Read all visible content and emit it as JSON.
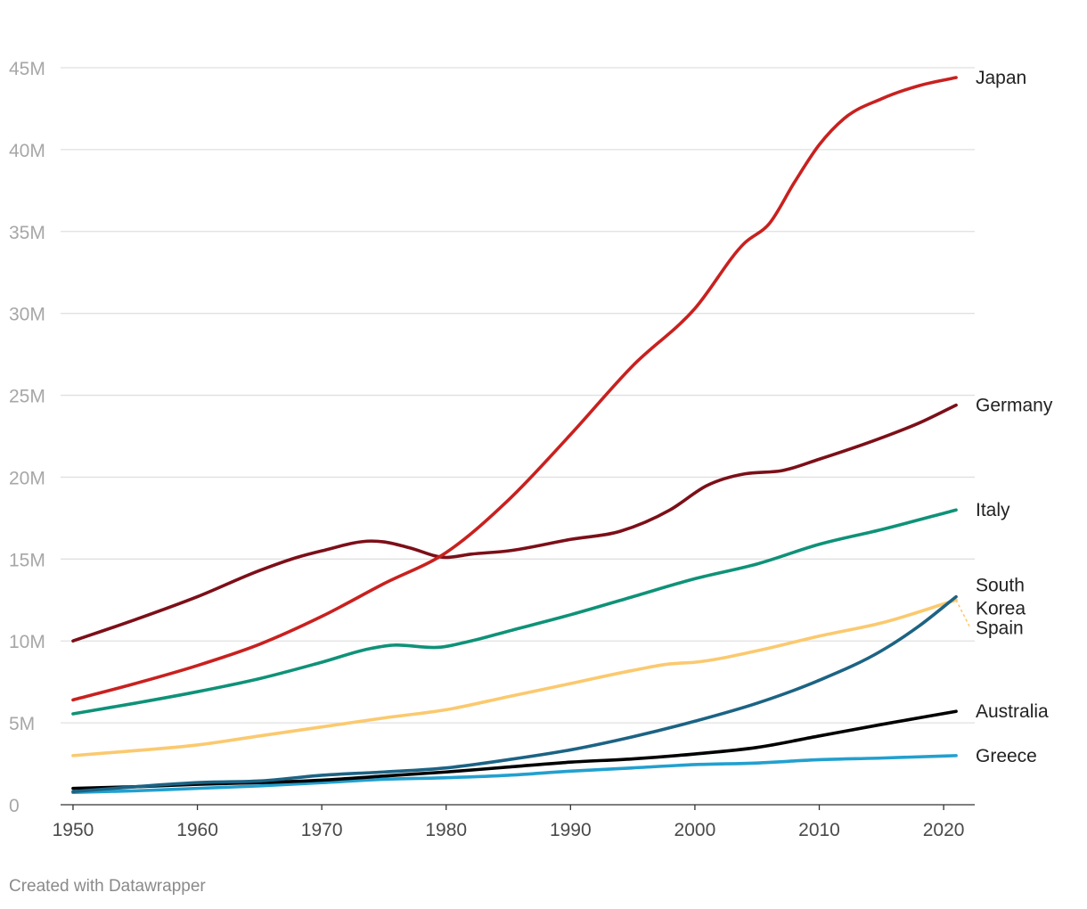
{
  "credit": "Created with Datawrapper",
  "chart_data": {
    "type": "line",
    "title": "",
    "xlabel": "",
    "ylabel": "",
    "xlim": [
      1949,
      2022.5
    ],
    "ylim": [
      0,
      45000000
    ],
    "x_ticks": [
      1950,
      1960,
      1970,
      1980,
      1990,
      2000,
      2010,
      2020
    ],
    "y_ticks": [
      {
        "value": 0,
        "label": "0"
      },
      {
        "value": 5000000,
        "label": "5M"
      },
      {
        "value": 10000000,
        "label": "10M"
      },
      {
        "value": 15000000,
        "label": "15M"
      },
      {
        "value": 20000000,
        "label": "20M"
      },
      {
        "value": 25000000,
        "label": "25M"
      },
      {
        "value": 30000000,
        "label": "30M"
      },
      {
        "value": 35000000,
        "label": "35M"
      },
      {
        "value": 40000000,
        "label": "40M"
      },
      {
        "value": 45000000,
        "label": "45M"
      }
    ],
    "grid": true,
    "legend": "direct labels at line ends (right)",
    "series": [
      {
        "name": "Greece",
        "color": "#22a0cf",
        "labels": [
          "Greece"
        ],
        "points": [
          [
            1950,
            750000
          ],
          [
            1955,
            850000
          ],
          [
            1960,
            1000000
          ],
          [
            1965,
            1150000
          ],
          [
            1970,
            1350000
          ],
          [
            1975,
            1550000
          ],
          [
            1980,
            1650000
          ],
          [
            1985,
            1800000
          ],
          [
            1990,
            2050000
          ],
          [
            1995,
            2250000
          ],
          [
            2000,
            2450000
          ],
          [
            2005,
            2550000
          ],
          [
            2010,
            2750000
          ],
          [
            2015,
            2850000
          ],
          [
            2021,
            3000000
          ]
        ]
      },
      {
        "name": "Australia",
        "color": "#000000",
        "labels": [
          "Australia"
        ],
        "points": [
          [
            1950,
            1000000
          ],
          [
            1955,
            1100000
          ],
          [
            1960,
            1250000
          ],
          [
            1965,
            1350000
          ],
          [
            1970,
            1500000
          ],
          [
            1975,
            1750000
          ],
          [
            1980,
            2000000
          ],
          [
            1985,
            2300000
          ],
          [
            1990,
            2600000
          ],
          [
            1995,
            2800000
          ],
          [
            2000,
            3100000
          ],
          [
            2005,
            3500000
          ],
          [
            2010,
            4200000
          ],
          [
            2015,
            4900000
          ],
          [
            2021,
            5700000
          ]
        ]
      },
      {
        "name": "Spain",
        "color": "#fbc96e",
        "labels": [
          "Spain"
        ],
        "points": [
          [
            1950,
            3000000
          ],
          [
            1955,
            3300000
          ],
          [
            1960,
            3650000
          ],
          [
            1965,
            4200000
          ],
          [
            1970,
            4750000
          ],
          [
            1975,
            5300000
          ],
          [
            1980,
            5800000
          ],
          [
            1985,
            6600000
          ],
          [
            1990,
            7400000
          ],
          [
            1995,
            8200000
          ],
          [
            1998,
            8600000
          ],
          [
            2000,
            8700000
          ],
          [
            2005,
            9400000
          ],
          [
            2010,
            10300000
          ],
          [
            2015,
            11100000
          ],
          [
            2021,
            12500000
          ]
        ]
      },
      {
        "name": "South Korea",
        "color": "#1c6384",
        "labels": [
          "South",
          "Korea"
        ],
        "points": [
          [
            1950,
            800000
          ],
          [
            1955,
            1100000
          ],
          [
            1960,
            1350000
          ],
          [
            1965,
            1450000
          ],
          [
            1970,
            1800000
          ],
          [
            1975,
            2000000
          ],
          [
            1980,
            2250000
          ],
          [
            1985,
            2750000
          ],
          [
            1990,
            3350000
          ],
          [
            1995,
            4150000
          ],
          [
            2000,
            5100000
          ],
          [
            2005,
            6200000
          ],
          [
            2010,
            7600000
          ],
          [
            2015,
            9400000
          ],
          [
            2018,
            10900000
          ],
          [
            2021,
            12700000
          ]
        ]
      },
      {
        "name": "Italy",
        "color": "#0e9278",
        "labels": [
          "Italy"
        ],
        "points": [
          [
            1950,
            5550000
          ],
          [
            1955,
            6200000
          ],
          [
            1960,
            6900000
          ],
          [
            1965,
            7700000
          ],
          [
            1970,
            8700000
          ],
          [
            1974,
            9550000
          ],
          [
            1976,
            9750000
          ],
          [
            1979,
            9600000
          ],
          [
            1982,
            10000000
          ],
          [
            1985,
            10600000
          ],
          [
            1990,
            11600000
          ],
          [
            1995,
            12700000
          ],
          [
            2000,
            13800000
          ],
          [
            2005,
            14700000
          ],
          [
            2010,
            15900000
          ],
          [
            2015,
            16800000
          ],
          [
            2021,
            18000000
          ]
        ]
      },
      {
        "name": "Germany",
        "color": "#7c0f18",
        "labels": [
          "Germany"
        ],
        "points": [
          [
            1950,
            10000000
          ],
          [
            1955,
            11300000
          ],
          [
            1960,
            12700000
          ],
          [
            1965,
            14300000
          ],
          [
            1968,
            15100000
          ],
          [
            1970,
            15500000
          ],
          [
            1974,
            16100000
          ],
          [
            1975,
            16050000
          ],
          [
            1977,
            15700000
          ],
          [
            1980,
            15100000
          ],
          [
            1982,
            15300000
          ],
          [
            1985,
            15500000
          ],
          [
            1990,
            16200000
          ],
          [
            1994,
            16700000
          ],
          [
            1998,
            18000000
          ],
          [
            2001,
            19500000
          ],
          [
            2004,
            20200000
          ],
          [
            2007,
            20400000
          ],
          [
            2010,
            21100000
          ],
          [
            2015,
            22400000
          ],
          [
            2018,
            23300000
          ],
          [
            2021,
            24400000
          ]
        ]
      },
      {
        "name": "Japan",
        "color": "#c8211f",
        "labels": [
          "Japan"
        ],
        "points": [
          [
            1950,
            6400000
          ],
          [
            1955,
            7400000
          ],
          [
            1960,
            8500000
          ],
          [
            1965,
            9800000
          ],
          [
            1970,
            11500000
          ],
          [
            1975,
            13500000
          ],
          [
            1980,
            15400000
          ],
          [
            1985,
            18600000
          ],
          [
            1990,
            22600000
          ],
          [
            1995,
            26800000
          ],
          [
            2000,
            30300000
          ],
          [
            2004,
            34300000
          ],
          [
            2006,
            35500000
          ],
          [
            2008,
            38000000
          ],
          [
            2010,
            40300000
          ],
          [
            2012,
            41900000
          ],
          [
            2015,
            43100000
          ],
          [
            2018,
            43900000
          ],
          [
            2021,
            44400000
          ]
        ]
      }
    ]
  }
}
